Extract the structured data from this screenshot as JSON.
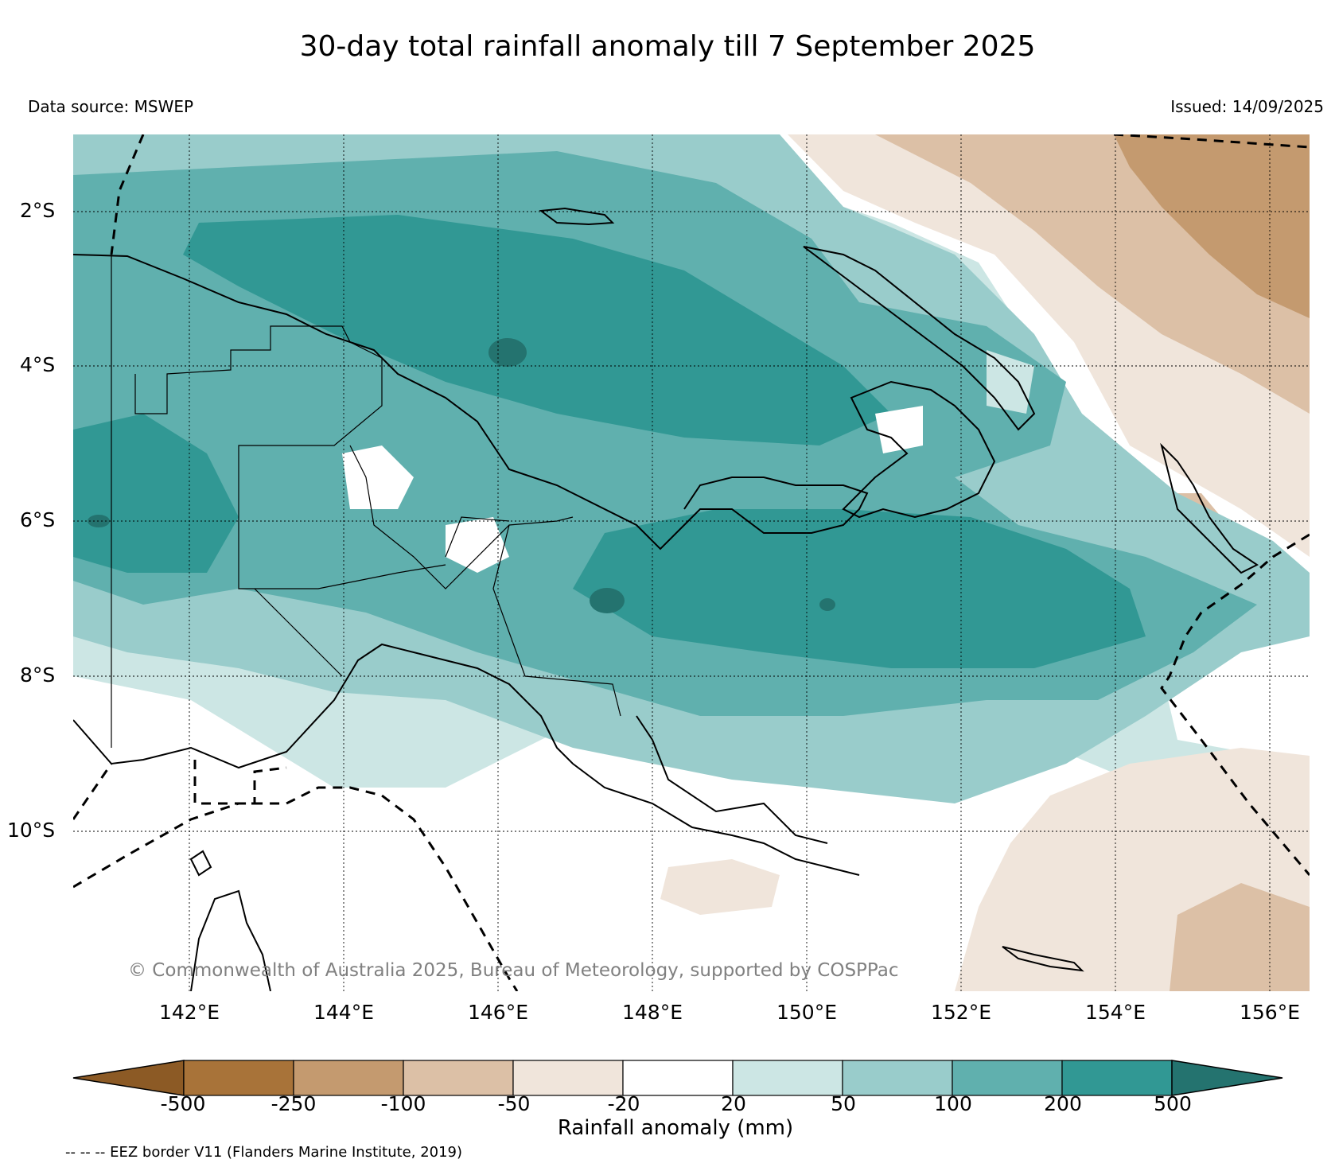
{
  "header": {
    "title": "30-day total rainfall anomaly till 7 September 2025",
    "data_source": "Data source: MSWEP",
    "issued": "Issued: 14/09/2025"
  },
  "map": {
    "lat_labels": [
      "2°S",
      "4°S",
      "6°S",
      "8°S",
      "10°S"
    ],
    "lon_labels": [
      "142°E",
      "144°E",
      "146°E",
      "148°E",
      "150°E",
      "152°E",
      "154°E",
      "156°E"
    ],
    "copyright": "© Commonwealth of Australia 2025, Bureau of Meteorology, supported by COSPPac",
    "colors": {
      "land_border": "#000000",
      "eez_border": "#000000",
      "gridline": "#000000"
    }
  },
  "colorbar": {
    "title": "Rainfall anomaly (mm)",
    "tick_labels": [
      "-500",
      "-250",
      "-100",
      "-50",
      "-20",
      "20",
      "50",
      "100",
      "200",
      "500"
    ],
    "colors": [
      "#8c5a25",
      "#a87339",
      "#c49a6f",
      "#dcc0a6",
      "#f0e5db",
      "#ffffff",
      "#cce6e4",
      "#99cccb",
      "#60b0ae",
      "#319894",
      "#24736f"
    ]
  },
  "footer": {
    "eez_note": "-- -- -- EEZ border V11 (Flanders Marine Institute, 2019)"
  }
}
